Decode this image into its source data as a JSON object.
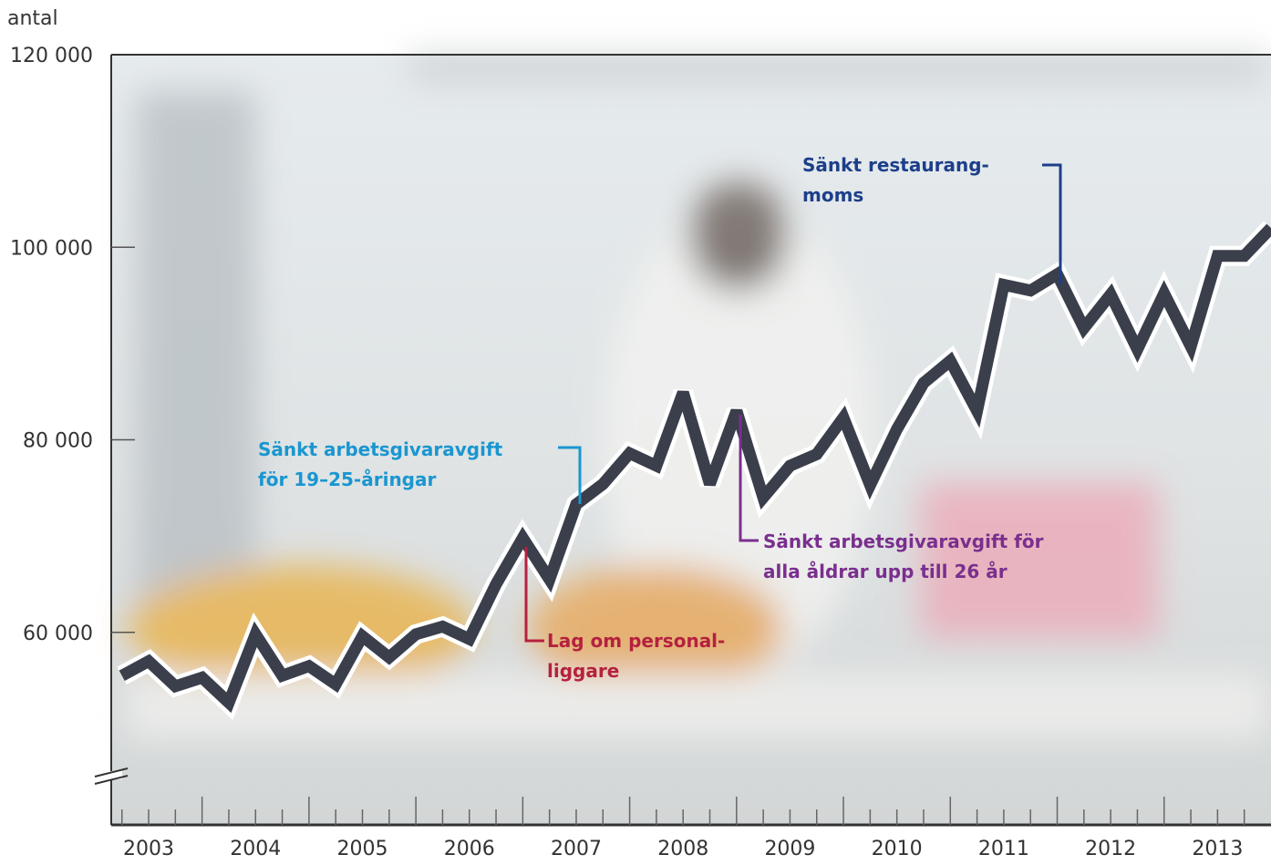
{
  "chart_data": {
    "type": "line",
    "y_axis_label": "antal",
    "x": [
      2003.25,
      2003.5,
      2003.75,
      2004.0,
      2004.25,
      2004.5,
      2004.75,
      2005.0,
      2005.25,
      2005.5,
      2005.75,
      2006.0,
      2006.25,
      2006.5,
      2006.75,
      2007.0,
      2007.25,
      2007.5,
      2007.75,
      2008.0,
      2008.25,
      2008.5,
      2008.75,
      2009.0,
      2009.25,
      2009.5,
      2009.75,
      2010.0,
      2010.25,
      2010.5,
      2010.75,
      2011.0,
      2011.25,
      2011.5,
      2011.75,
      2012.0,
      2012.25,
      2012.5,
      2012.75,
      2013.0,
      2013.25,
      2013.5,
      2013.75,
      2014.0
    ],
    "series": [
      {
        "color": "#3a3f4b",
        "values": [
          55500,
          57000,
          54400,
          55300,
          52700,
          59800,
          55500,
          56500,
          54600,
          59600,
          57400,
          59800,
          60600,
          59300,
          65000,
          69800,
          65500,
          73300,
          75400,
          78600,
          77300,
          84900,
          75400,
          83000,
          74000,
          77300,
          78500,
          82300,
          75300,
          81100,
          85900,
          88200,
          83000,
          96100,
          95500,
          97200,
          91600,
          95100,
          89400,
          95200,
          89700,
          99100,
          99100,
          102000
        ]
      }
    ],
    "xlim": [
      2003.15,
      2014.0
    ],
    "ylim": [
      40000,
      120000
    ],
    "xticks": [
      {
        "value": 2003.5,
        "label": "2003"
      },
      {
        "value": 2004.5,
        "label": "2004"
      },
      {
        "value": 2005.5,
        "label": "2005"
      },
      {
        "value": 2006.5,
        "label": "2006"
      },
      {
        "value": 2007.5,
        "label": "2007"
      },
      {
        "value": 2008.5,
        "label": "2008"
      },
      {
        "value": 2009.5,
        "label": "2009"
      },
      {
        "value": 2010.5,
        "label": "2010"
      },
      {
        "value": 2011.5,
        "label": "2011"
      },
      {
        "value": 2012.5,
        "label": "2012"
      },
      {
        "value": 2013.5,
        "label": "2013"
      }
    ],
    "yticks": [
      {
        "value": 60000,
        "label": "60 000"
      },
      {
        "value": 80000,
        "label": "80 000"
      },
      {
        "value": 100000,
        "label": "100 000"
      },
      {
        "value": 120000,
        "label": "120 000"
      }
    ],
    "annotations": [
      {
        "lines": [
          "Sänkt arbetsgivaravgift",
          "för 19–25-åringar"
        ],
        "color": "#1a96d0"
      },
      {
        "lines": [
          "Lag om personal-",
          "liggare"
        ],
        "color": "#b5213f"
      },
      {
        "lines": [
          "Sänkt arbetsgivaravgift för",
          "alla åldrar upp till 26 år"
        ],
        "color": "#7a2f8e"
      },
      {
        "lines": [
          "Sänkt restaurang-",
          "moms"
        ],
        "color": "#1d3f8a"
      }
    ]
  }
}
